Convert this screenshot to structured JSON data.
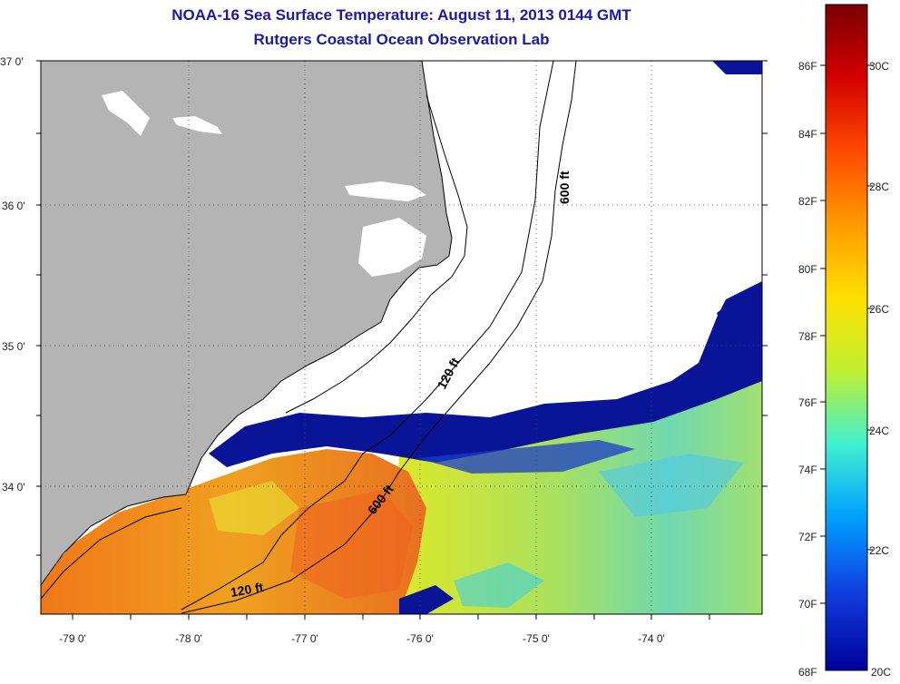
{
  "header": {
    "title": "NOAA-16 Sea Surface Temperature:  August 11, 2013 0144 GMT",
    "subtitle": "Rutgers Coastal Ocean Observation Lab"
  },
  "map": {
    "lat_labels": [
      "37 0'",
      "36 0'",
      "35 0'",
      "34 0'"
    ],
    "lon_labels": [
      "-79 0'",
      "-78 0'",
      "-77 0'",
      "-76 0'",
      "-75 0'",
      "-74 0'"
    ],
    "contour_labels": [
      {
        "id": "c600-north",
        "text": "600 ft"
      },
      {
        "id": "c120-mid",
        "text": "120 ft"
      },
      {
        "id": "c600-south",
        "text": "600 ft"
      },
      {
        "id": "c120-south",
        "text": "120 ft"
      }
    ],
    "colors": {
      "land": "#b4b4b4",
      "cloud": "#ffffff",
      "cold_front": "#0a1496",
      "warm_water": "#f08c19",
      "mid_water": "#e6e61e"
    }
  },
  "colorbar": {
    "f_labels": [
      "86F",
      "84F",
      "82F",
      "80F",
      "78F",
      "76F",
      "74F",
      "72F",
      "70F",
      "68F"
    ],
    "c_labels": [
      "30C",
      "28C",
      "26C",
      "24C",
      "22C",
      "20C"
    ],
    "stops": [
      "#7a0000",
      "#d40000",
      "#ff4a00",
      "#ff9a00",
      "#ffe000",
      "#c0f030",
      "#40f0d0",
      "#00a0ff",
      "#1040e0",
      "#00009a"
    ]
  }
}
